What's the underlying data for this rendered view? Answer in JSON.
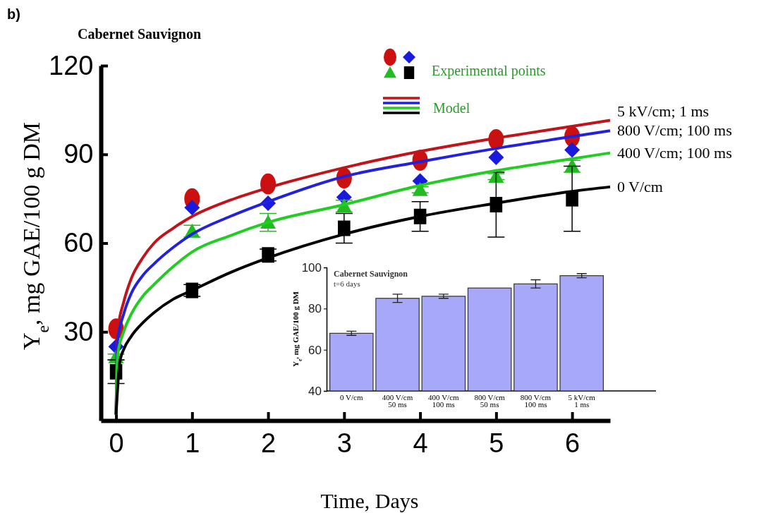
{
  "chart_data": [
    {
      "type": "line",
      "title": "Cabernet Sauvignon",
      "xlabel": "Time, Days",
      "ylabel": "Y$_{e}$, mg GAE/100 g DM",
      "annotations": [
        "b)",
        "Experimental points",
        "Model"
      ],
      "xlim": [
        -0.2,
        6.5
      ],
      "xticks": [
        0,
        1,
        2,
        3,
        4,
        5,
        6
      ],
      "ylim": [
        0,
        120
      ],
      "yticks": [
        30,
        60,
        90,
        120
      ],
      "grid": false,
      "legend": "top right",
      "series": [
        {
          "type": "line",
          "name": "5 kV/cm; 1 ms",
          "color": "#c0141c",
          "line_style": "solid",
          "x": [
            0,
            0.02,
            0.1,
            0.2,
            0.35,
            0.5,
            0.75,
            1,
            1.5,
            2,
            3,
            4,
            5,
            6,
            6.5
          ],
          "values": [
            2,
            30,
            40,
            48,
            55,
            60,
            65,
            69,
            74.5,
            78.7,
            85.5,
            91,
            95.5,
            99.5,
            101.5
          ]
        },
        {
          "type": "line",
          "name": "800 V/cm; 100 ms",
          "color": "#2222dd",
          "line_style": "solid",
          "x": [
            0,
            0.02,
            0.1,
            0.2,
            0.35,
            0.5,
            0.75,
            1,
            1.5,
            2,
            3,
            4,
            5,
            6,
            6.5
          ],
          "values": [
            2,
            27,
            36,
            43,
            49,
            53,
            58.5,
            63,
            69,
            74,
            82.5,
            87.5,
            92,
            96,
            98
          ]
        },
        {
          "type": "line",
          "name": "400 V/cm; 100 ms",
          "color": "#22cc22",
          "line_style": "solid",
          "x": [
            0,
            0.02,
            0.1,
            0.2,
            0.35,
            0.5,
            0.75,
            1,
            1.5,
            2,
            3,
            4,
            5,
            6,
            6.5
          ],
          "values": [
            2,
            22,
            30,
            36,
            42,
            46,
            52,
            57,
            62.5,
            67,
            73,
            79.5,
            84.5,
            88.5,
            90.5
          ]
        },
        {
          "type": "line",
          "name": "0 V/cm",
          "color": "#000000",
          "line_style": "solid",
          "x": [
            0,
            0.05,
            0.1,
            0.2,
            0.35,
            0.5,
            0.75,
            1,
            1.5,
            2,
            3,
            4,
            5,
            6,
            6.5
          ],
          "values": [
            2,
            20,
            24,
            28.5,
            33,
            36.5,
            41,
            44,
            50,
            55,
            63,
            69,
            73.5,
            77.5,
            79
          ]
        },
        {
          "type": "scatter",
          "color": "#cc1010",
          "marker": "circle",
          "x": [
            0,
            1,
            2,
            3,
            4,
            5,
            6
          ],
          "values": [
            31,
            75,
            80,
            82,
            88,
            95,
            96
          ]
        },
        {
          "type": "scatter",
          "color": "#1a1adc",
          "marker": "diamond",
          "x": [
            0,
            1,
            2,
            3,
            4,
            5,
            6
          ],
          "values": [
            25,
            72,
            73.5,
            75.5,
            81,
            89,
            91.5
          ]
        },
        {
          "type": "scatter",
          "color": "#22bb22",
          "marker": "triangle",
          "x": [
            0,
            1,
            2,
            3,
            4,
            5,
            6
          ],
          "values": [
            21.5,
            64,
            67,
            72.5,
            78,
            82.5,
            86
          ],
          "errors": [
            1,
            2,
            3,
            2,
            1,
            1,
            2
          ]
        },
        {
          "type": "scatter",
          "color": "#000000",
          "marker": "square",
          "x": [
            0,
            1,
            2,
            3,
            4,
            5,
            6
          ],
          "values": [
            16.5,
            44,
            56,
            65,
            69,
            73,
            75
          ],
          "errors": [
            4,
            2,
            2,
            5,
            5,
            11,
            11
          ]
        }
      ]
    },
    {
      "type": "bar",
      "title": "Cabernet Sauvignon",
      "subtitle": "t=6 days",
      "ylabel": "Y$_{e}$, mg GAE/100 g DM",
      "categories": [
        "0 V/cm",
        "400 V/cm\n50 ms",
        "400 V/cm\n100 ms",
        "800 V/cm\n50 ms",
        "800 V/cm\n100 ms",
        "5 kV/cm\n1 ms"
      ],
      "values": [
        68,
        85,
        86,
        90,
        92,
        96
      ],
      "errors": [
        1,
        2,
        1,
        null,
        2,
        1
      ],
      "color": "#a8a8f8",
      "ylim": [
        40,
        100
      ],
      "yticks": [
        40,
        60,
        80,
        100
      ]
    }
  ]
}
